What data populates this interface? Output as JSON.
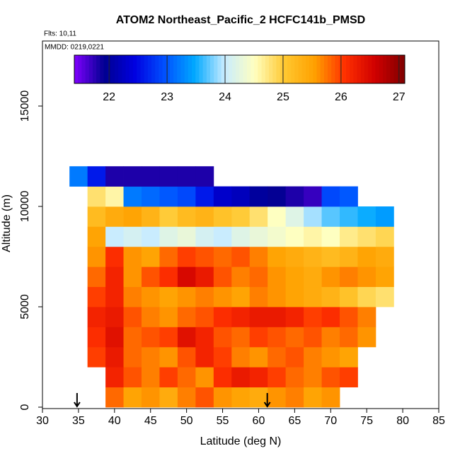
{
  "chart_data": {
    "type": "heatmap",
    "title": "ATOM2 Northeast_Pacific_2 HCFC141b_PMSD",
    "annotations": [
      "Flts: 10,11",
      "MMDD: 0219,0221"
    ],
    "x_label": "Latitude (deg N)",
    "y_label": "Altitude (m)",
    "x": [
      35,
      37.5,
      40,
      42.5,
      45,
      47.5,
      50,
      52.5,
      55,
      57.5,
      60,
      62.5,
      65,
      67.5,
      70,
      72.5,
      75,
      77.5,
      80
    ],
    "y": [
      500,
      1500,
      2500,
      3500,
      4500,
      5500,
      6500,
      7500,
      8500,
      9500,
      10500,
      11500
    ],
    "z": [
      [
        null,
        null,
        25.8,
        25.5,
        25.6,
        25.4,
        25.7,
        25.9,
        25.6,
        25.5,
        25.4,
        25.6,
        25.7,
        25.5,
        25.6,
        null,
        null,
        null,
        null
      ],
      [
        null,
        null,
        26.2,
        25.9,
        25.7,
        26.0,
        25.8,
        25.6,
        26.1,
        26.3,
        26.2,
        26.0,
        25.8,
        25.7,
        25.9,
        26.0,
        null,
        null,
        null
      ],
      [
        null,
        26.0,
        26.3,
        25.8,
        25.7,
        25.6,
        25.9,
        26.2,
        26.0,
        25.7,
        25.6,
        25.8,
        25.9,
        25.7,
        25.6,
        25.5,
        null,
        null,
        null
      ],
      [
        null,
        26.1,
        26.4,
        25.8,
        25.9,
        26.0,
        26.4,
        26.2,
        25.9,
        25.8,
        26.0,
        25.9,
        25.8,
        25.9,
        25.7,
        25.8,
        25.6,
        null,
        null
      ],
      [
        null,
        26.2,
        26.3,
        25.9,
        25.7,
        25.6,
        25.8,
        25.9,
        26.1,
        26.2,
        26.3,
        26.3,
        26.2,
        26.0,
        26.1,
        25.9,
        25.7,
        null,
        null
      ],
      [
        null,
        26.0,
        26.2,
        25.7,
        25.6,
        25.5,
        25.6,
        25.7,
        25.6,
        25.5,
        25.7,
        25.6,
        25.5,
        25.4,
        25.3,
        25.1,
        24.9,
        24.8,
        null
      ],
      [
        null,
        25.8,
        26.2,
        25.6,
        25.9,
        26.1,
        26.5,
        26.3,
        25.9,
        25.7,
        25.8,
        25.6,
        25.5,
        25.4,
        25.6,
        25.7,
        25.6,
        25.5,
        null
      ],
      [
        null,
        25.6,
        26.1,
        25.6,
        25.5,
        25.8,
        26.0,
        25.9,
        25.8,
        25.9,
        25.7,
        25.5,
        25.4,
        25.3,
        25.2,
        25.3,
        25.5,
        25.4,
        null
      ],
      [
        null,
        25.5,
        24.0,
        24.1,
        24.0,
        24.2,
        24.3,
        24.1,
        24.0,
        24.2,
        24.3,
        24.4,
        24.5,
        24.6,
        24.5,
        24.7,
        24.8,
        24.9,
        null
      ],
      [
        null,
        25.2,
        25.4,
        25.5,
        25.3,
        25.0,
        25.2,
        25.3,
        25.1,
        25.0,
        24.8,
        24.5,
        24.2,
        23.9,
        23.7,
        23.6,
        23.5,
        23.4,
        null
      ],
      [
        null,
        24.8,
        24.6,
        23.2,
        23.1,
        23.0,
        22.9,
        22.6,
        22.3,
        22.2,
        22.0,
        21.9,
        21.8,
        21.7,
        22.9,
        23.0,
        null,
        null,
        null
      ],
      [
        23.2,
        22.6,
        21.8,
        21.8,
        21.8,
        21.8,
        21.8,
        21.8,
        null,
        null,
        null,
        null,
        null,
        null,
        null,
        null,
        null,
        null,
        null
      ]
    ],
    "cell_width": 2.5,
    "cell_height": 1000,
    "xlim": [
      30,
      85
    ],
    "xticks": [
      30,
      35,
      40,
      45,
      50,
      55,
      60,
      65,
      70,
      75,
      80,
      85
    ],
    "ylim": [
      -70,
      18240
    ],
    "yticks": [
      0,
      5000,
      10000,
      15000
    ],
    "zlim": [
      21.4,
      27.1
    ],
    "zticks": [
      22,
      23,
      24,
      25,
      26,
      27
    ],
    "colormap": [
      "#8000ff",
      "#000090",
      "#0000e0",
      "#0050ff",
      "#00a8ff",
      "#c8ecff",
      "#ffffc0",
      "#ffc830",
      "#ffa000",
      "#ff3000",
      "#d00000",
      "#800000"
    ],
    "arrows_x": [
      34.8,
      61.2
    ]
  }
}
